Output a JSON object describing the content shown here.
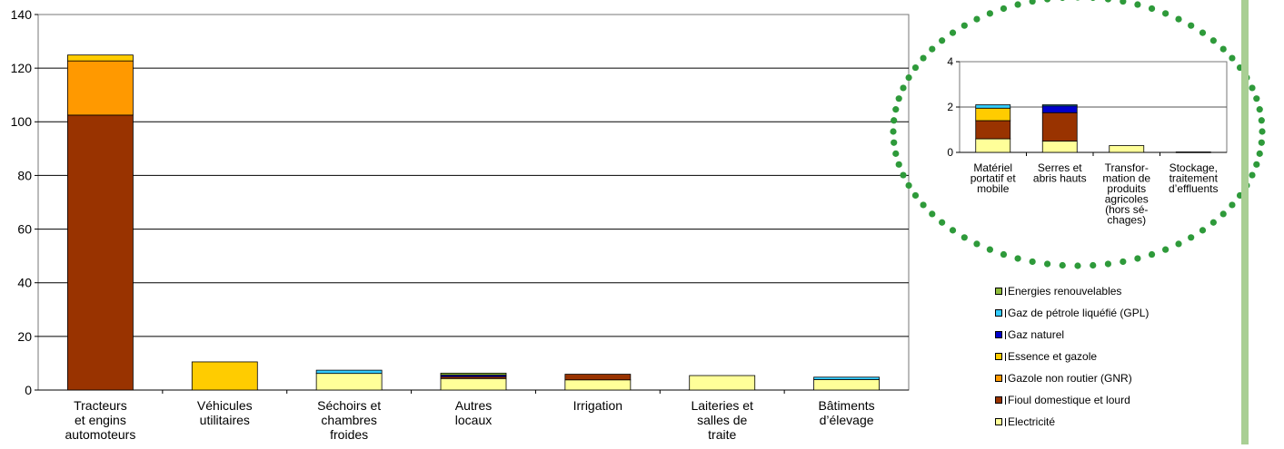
{
  "chart_data": [
    {
      "type": "bar",
      "stacked": true,
      "ylim": [
        0,
        140
      ],
      "yticks": [
        "0",
        "20",
        "40",
        "60",
        "80",
        "100",
        "120",
        "140"
      ],
      "grid": true,
      "categories": [
        "Tracteurs et engins automoteurs",
        "Véhicules utilitaires",
        "Séchoirs et chambres froides",
        "Autres locaux",
        "Irrigation",
        "Laiteries et salles de traite",
        "Bâtiments d’élevage"
      ],
      "series": [
        {
          "name": "Electricité",
          "values": [
            0,
            0,
            6.2,
            4.3,
            3.8,
            5.4,
            3.9
          ]
        },
        {
          "name": "Fioul domestique et lourd",
          "values": [
            102.5,
            0,
            0,
            0.7,
            2.1,
            0,
            0
          ]
        },
        {
          "name": "Gazole non routier (GNR)",
          "values": [
            20.2,
            0,
            0,
            0,
            0,
            0,
            0
          ]
        },
        {
          "name": "Essence et gazole",
          "values": [
            2.2,
            10.5,
            0,
            0,
            0,
            0,
            0
          ]
        },
        {
          "name": "Gaz naturel",
          "values": [
            0,
            0,
            0,
            0.6,
            0,
            0,
            0
          ]
        },
        {
          "name": "Gaz de pétrole liquéfié (GPL)",
          "values": [
            0,
            0,
            1.2,
            0,
            0,
            0,
            0.9
          ]
        },
        {
          "name": "Energies renouvelables",
          "values": [
            0,
            0,
            0,
            0.7,
            0,
            0,
            0
          ]
        }
      ]
    },
    {
      "type": "bar",
      "stacked": true,
      "ylim": [
        0,
        4
      ],
      "yticks": [
        "0",
        "2",
        "4"
      ],
      "grid": true,
      "categories": [
        "Matériel portatif et mobile",
        "Serres et abris hauts",
        "Transfor-mation de produits agricoles (hors sé-chages)",
        "Stockage, traitement d’effluents"
      ],
      "series": [
        {
          "name": "Electricité",
          "values": [
            0.6,
            0.5,
            0.3,
            0.02
          ]
        },
        {
          "name": "Fioul domestique et lourd",
          "values": [
            0.8,
            1.25,
            0,
            0
          ]
        },
        {
          "name": "Gazole non routier (GNR)",
          "values": [
            0,
            0,
            0,
            0
          ]
        },
        {
          "name": "Essence et gazole",
          "values": [
            0.55,
            0,
            0,
            0
          ]
        },
        {
          "name": "Gaz naturel",
          "values": [
            0,
            0.3,
            0,
            0
          ]
        },
        {
          "name": "Gaz de pétrole liquéfié (GPL)",
          "values": [
            0.15,
            0.05,
            0,
            0
          ]
        },
        {
          "name": "Energies renouvelables",
          "values": [
            0,
            0,
            0,
            0
          ]
        }
      ]
    }
  ],
  "main_category_lines": [
    [
      "Tracteurs",
      "et engins",
      "automoteurs"
    ],
    [
      "Véhicules",
      "utilitaires"
    ],
    [
      "Séchoirs et",
      "chambres",
      "froides"
    ],
    [
      "Autres",
      "locaux"
    ],
    [
      "Irrigation"
    ],
    [
      "Laiteries et",
      "salles de",
      "traite"
    ],
    [
      "Bâtiments",
      "d’élevage"
    ]
  ],
  "inset_category_lines": [
    [
      "Matériel",
      "portatif et",
      "mobile"
    ],
    [
      "Serres et",
      "abris hauts"
    ],
    [
      "Transfor-",
      "mation de",
      "produits",
      "agricoles",
      "(hors sé-",
      "chages)"
    ],
    [
      "Stockage,",
      "traitement",
      "d’effluents"
    ]
  ],
  "legend": {
    "items": [
      {
        "label": "Energies renouvelables",
        "color": "#8fbc3c"
      },
      {
        "label": "Gaz de pétrole liquéfié (GPL)",
        "color": "#33ccff"
      },
      {
        "label": "Gaz naturel",
        "color": "#0000cc"
      },
      {
        "label": "Essence et gazole",
        "color": "#ffcc00"
      },
      {
        "label": "Gazole non routier (GNR)",
        "color": "#ff9900"
      },
      {
        "label": "Fioul domestique et lourd",
        "color": "#993300"
      },
      {
        "label": "Electricité",
        "color": "#ffff99"
      }
    ]
  },
  "colors": {
    "Electricité": "#ffff99",
    "Fioul domestique et lourd": "#993300",
    "Gazole non routier (GNR)": "#ff9900",
    "Essence et gazole": "#ffcc00",
    "Gaz naturel": "#0000cc",
    "Gaz de pétrole liquéfié (GPL)": "#33ccff",
    "Energies renouvelables": "#8fbc3c",
    "highlight_dots": "#2e9a3a",
    "side_bar": "#a9cf94"
  }
}
